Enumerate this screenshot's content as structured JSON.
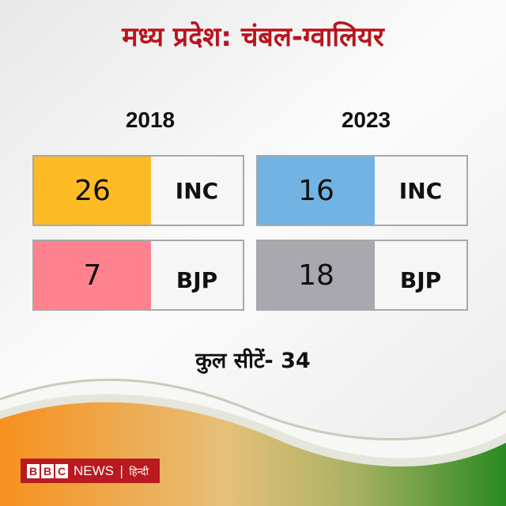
{
  "title": "मध्य प्रदेश: चंबल-ग्वालियर",
  "years": [
    {
      "label": "2018",
      "rows": [
        {
          "seats": "26",
          "party": "INC",
          "color": "#fdbb25"
        },
        {
          "seats": "7",
          "party": "BJP",
          "color": "#fe838f"
        }
      ]
    },
    {
      "label": "2023",
      "rows": [
        {
          "seats": "16",
          "party": "INC",
          "color": "#71b4e3"
        },
        {
          "seats": "18",
          "party": "BJP",
          "color": "#a8a8ae"
        }
      ]
    }
  ],
  "total": "कुल सीटें- 34",
  "logo": {
    "letters": [
      "B",
      "B",
      "C"
    ],
    "news": "NEWS",
    "separator": "|",
    "language": "हिन्दी"
  }
}
